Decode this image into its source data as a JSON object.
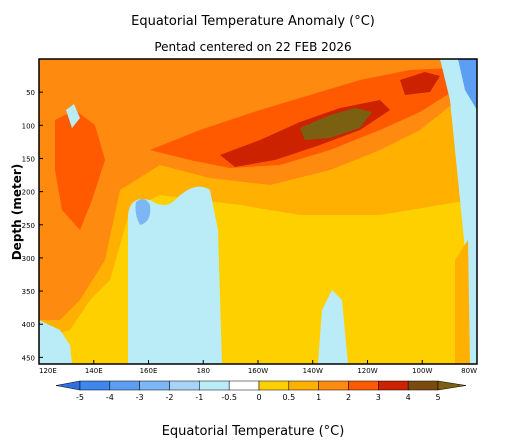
{
  "chart_data": {
    "type": "heatmap",
    "title": "Equatorial Temperature Anomaly (°C)",
    "subtitle": "Pentad centered on 22 FEB 2026",
    "ylabel": "Depth (meter)",
    "colorbar_label": "Equatorial Temperature (°C)",
    "x_ticks": [
      "120E",
      "140E",
      "160E",
      "180",
      "160W",
      "140W",
      "120W",
      "100W",
      "80W"
    ],
    "xlim": [
      120,
      280
    ],
    "y_ticks": [
      50,
      100,
      150,
      200,
      250,
      300,
      350,
      400,
      450
    ],
    "ylim": [
      0,
      460
    ],
    "colorbar": {
      "levels": [
        "-5",
        "-4",
        "-3",
        "-2",
        "-1",
        "-0.5",
        "0",
        "0.5",
        "1",
        "2",
        "3",
        "4",
        "5"
      ],
      "colors": [
        "#2f6fe0",
        "#3f86ee",
        "#5c9ef2",
        "#7db6f5",
        "#a8d4f7",
        "#b9ecf7",
        "#ffffff",
        "#ffd000",
        "#ffb000",
        "#ff8a10",
        "#ff5a00",
        "#cc2200",
        "#7a4a10",
        "#7a6010"
      ]
    },
    "contours_description_free": true
  }
}
